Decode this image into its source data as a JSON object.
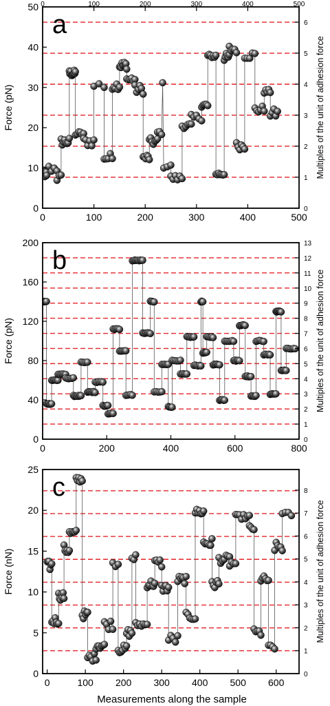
{
  "figure": {
    "xlabel": "Measurements along the sample",
    "right_axis_label": "Multiples of the unit of adhesion force"
  },
  "chart_data": [
    {
      "type": "scatter",
      "panel_label": "a",
      "ylabel": "Force (pN)",
      "y2label": "Multiples of the unit of adhesion force",
      "xlim": [
        0,
        500
      ],
      "ylim": [
        0,
        50
      ],
      "y2lim": [
        0,
        6.49
      ],
      "x_ticks": [
        0,
        100,
        200,
        300,
        400,
        500
      ],
      "y_ticks": [
        0,
        10,
        20,
        30,
        40,
        50
      ],
      "y2_ticks": [
        0,
        1,
        2,
        3,
        4,
        5,
        6
      ],
      "top_ticks": [
        0,
        100,
        200,
        300,
        400,
        500
      ],
      "unit_force": 7.7,
      "grid": false,
      "levels": [
        [
          0,
          8,
          1,
          8.5,
          12
        ],
        [
          12,
          28,
          1,
          9.8,
          4
        ],
        [
          28,
          36,
          1,
          7.5,
          3
        ],
        [
          36,
          52,
          1,
          16.5,
          8
        ],
        [
          52,
          64,
          0.8,
          33.5,
          12
        ],
        [
          64,
          80,
          0.6,
          18.5,
          6
        ],
        [
          80,
          100,
          1.2,
          16.5,
          6
        ],
        [
          100,
          120,
          1,
          30.5,
          3
        ],
        [
          120,
          136,
          1.2,
          12.5,
          5
        ],
        [
          136,
          150,
          1,
          30.5,
          6
        ],
        [
          150,
          164,
          1,
          35.5,
          10
        ],
        [
          164,
          180,
          1,
          32,
          6
        ],
        [
          180,
          196,
          1.2,
          29.5,
          6
        ],
        [
          196,
          208,
          1,
          12.5,
          6
        ],
        [
          208,
          224,
          1,
          16.5,
          7
        ],
        [
          224,
          232,
          0.6,
          18.8,
          3
        ],
        [
          232,
          236,
          1,
          30.3,
          1
        ],
        [
          236,
          250,
          1,
          10.8,
          3
        ],
        [
          250,
          272,
          0.8,
          7.5,
          6
        ],
        [
          272,
          290,
          0.7,
          20.5,
          6
        ],
        [
          290,
          310,
          0.8,
          22.5,
          5
        ],
        [
          310,
          322,
          0.8,
          25.5,
          6
        ],
        [
          322,
          338,
          0.5,
          37.8,
          7
        ],
        [
          338,
          354,
          0.5,
          8.5,
          7
        ],
        [
          354,
          364,
          1,
          37.5,
          6
        ],
        [
          364,
          378,
          1.2,
          39.5,
          5
        ],
        [
          378,
          394,
          1,
          15.5,
          6
        ],
        [
          394,
          414,
          1,
          38,
          5
        ],
        [
          414,
          432,
          1,
          24.5,
          6
        ],
        [
          432,
          444,
          0.5,
          29,
          5
        ],
        [
          444,
          458,
          1.2,
          23.5,
          5
        ]
      ]
    },
    {
      "type": "scatter",
      "panel_label": "b",
      "ylabel": "Force (pN)",
      "y2label": "Multiples of the unit of adhesion force",
      "xlim": [
        0,
        800
      ],
      "ylim": [
        0,
        200
      ],
      "y2lim": [
        0,
        13
      ],
      "x_ticks": [
        0,
        200,
        400,
        600,
        800
      ],
      "y_ticks": [
        0,
        40,
        80,
        120,
        160,
        200
      ],
      "y2_ticks": [
        0,
        1,
        2,
        3,
        4,
        5,
        6,
        7,
        8,
        9,
        10,
        11,
        12,
        13
      ],
      "unit_force": 15.385,
      "grid": false,
      "levels": [
        [
          0,
          12,
          0.5,
          140,
          7
        ],
        [
          12,
          28,
          0.5,
          36,
          7
        ],
        [
          28,
          48,
          0.6,
          60,
          7
        ],
        [
          48,
          72,
          0.4,
          66,
          7
        ],
        [
          72,
          96,
          0.5,
          62,
          6
        ],
        [
          96,
          120,
          0.6,
          44,
          9
        ],
        [
          120,
          140,
          0.5,
          78,
          5
        ],
        [
          140,
          164,
          0.6,
          48,
          9
        ],
        [
          164,
          188,
          0.6,
          58,
          6
        ],
        [
          188,
          204,
          0.6,
          34,
          6
        ],
        [
          204,
          220,
          0.5,
          26,
          5
        ],
        [
          220,
          240,
          0.5,
          112,
          6
        ],
        [
          240,
          260,
          0.5,
          90,
          6
        ],
        [
          260,
          280,
          0.5,
          45,
          5
        ],
        [
          280,
          312,
          0.5,
          182,
          10
        ],
        [
          312,
          336,
          0.5,
          108,
          8
        ],
        [
          336,
          348,
          0.5,
          140,
          5
        ],
        [
          348,
          372,
          0.4,
          48,
          5
        ],
        [
          372,
          392,
          0.5,
          76,
          6
        ],
        [
          392,
          404,
          0.6,
          33,
          5
        ],
        [
          404,
          430,
          0.4,
          80,
          6
        ],
        [
          430,
          450,
          0.6,
          66,
          6
        ],
        [
          450,
          472,
          0.5,
          104,
          7
        ],
        [
          472,
          494,
          0.5,
          75,
          6
        ],
        [
          494,
          500,
          0.5,
          140,
          4
        ],
        [
          500,
          512,
          0.5,
          88,
          5
        ],
        [
          512,
          532,
          0.6,
          104,
          6
        ],
        [
          532,
          552,
          0.5,
          76,
          7
        ],
        [
          552,
          568,
          0.6,
          40,
          6
        ],
        [
          568,
          596,
          0.5,
          100,
          7
        ],
        [
          596,
          614,
          0.6,
          80,
          6
        ],
        [
          614,
          632,
          0.5,
          116,
          7
        ],
        [
          632,
          650,
          0.6,
          64,
          6
        ],
        [
          650,
          666,
          0.5,
          44,
          6
        ],
        [
          666,
          690,
          0.6,
          100,
          6
        ],
        [
          690,
          710,
          0.5,
          86,
          6
        ],
        [
          710,
          728,
          0.6,
          46,
          7
        ],
        [
          728,
          744,
          0.6,
          130,
          9
        ],
        [
          744,
          760,
          0.5,
          70,
          6
        ],
        [
          760,
          788,
          0.5,
          92,
          7
        ]
      ]
    },
    {
      "type": "scatter",
      "panel_label": "c",
      "ylabel": "Force (nN)",
      "y2label": "Multiples of the unit of adhesion force",
      "xlabel": "Measurements along the sample",
      "xlim": [
        -12,
        660
      ],
      "ylim": [
        0,
        25
      ],
      "y2lim": [
        0,
        8.9
      ],
      "x_ticks": [
        0,
        100,
        200,
        300,
        400,
        500,
        600
      ],
      "y_ticks": [
        0,
        5,
        10,
        15,
        20,
        25
      ],
      "y2_ticks": [
        0,
        1,
        2,
        3,
        4,
        5,
        6,
        7,
        8
      ],
      "unit_force": 2.8,
      "grid": false,
      "levels": [
        [
          0,
          12,
          0.6,
          13.2,
          6
        ],
        [
          12,
          30,
          0.5,
          6.5,
          7
        ],
        [
          30,
          44,
          0.5,
          9.5,
          7
        ],
        [
          44,
          58,
          0.6,
          15.2,
          6
        ],
        [
          58,
          76,
          0.4,
          17.2,
          6
        ],
        [
          76,
          92,
          0.4,
          23.8,
          6
        ],
        [
          92,
          106,
          0.5,
          7.2,
          6
        ],
        [
          106,
          128,
          0.5,
          2,
          6
        ],
        [
          128,
          150,
          0.5,
          3.5,
          7
        ],
        [
          150,
          172,
          0.6,
          6,
          5
        ],
        [
          172,
          186,
          0.4,
          13.5,
          3
        ],
        [
          186,
          208,
          0.5,
          3,
          7
        ],
        [
          208,
          222,
          0.5,
          5,
          5
        ],
        [
          222,
          232,
          0.6,
          14.2,
          3
        ],
        [
          232,
          262,
          0.3,
          6,
          7
        ],
        [
          262,
          282,
          0.5,
          11,
          7
        ],
        [
          282,
          300,
          0.6,
          13.5,
          5
        ],
        [
          300,
          318,
          0.5,
          10.5,
          6
        ],
        [
          318,
          342,
          0.6,
          4.2,
          5
        ],
        [
          342,
          364,
          0.5,
          11.5,
          7
        ],
        [
          364,
          388,
          0.5,
          7,
          6
        ],
        [
          388,
          410,
          0.4,
          19.8,
          7
        ],
        [
          410,
          432,
          0.6,
          16,
          7
        ],
        [
          432,
          450,
          0.6,
          11,
          6
        ],
        [
          450,
          478,
          0.5,
          14,
          7
        ],
        [
          478,
          494,
          0.5,
          13.5,
          4
        ],
        [
          494,
          530,
          0.3,
          19.2,
          8
        ],
        [
          530,
          542,
          0.4,
          17.8,
          4
        ],
        [
          542,
          560,
          0.5,
          5,
          5
        ],
        [
          560,
          580,
          0.5,
          11.5,
          6
        ],
        [
          580,
          596,
          0.6,
          3,
          4
        ],
        [
          596,
          616,
          0.6,
          15.5,
          6
        ],
        [
          616,
          640,
          0.3,
          19.5,
          4
        ]
      ]
    }
  ]
}
